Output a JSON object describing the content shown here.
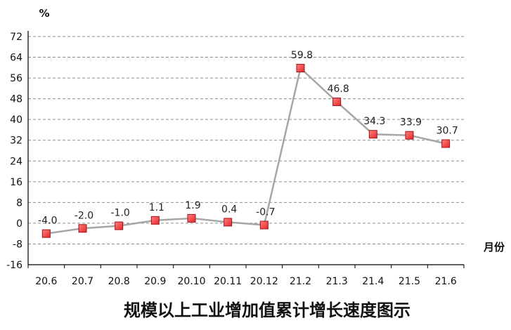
{
  "chart_data": {
    "type": "line",
    "title": "规模以上工业增加值累计增长速度图示",
    "ylabel": "%",
    "xlabel": "月份",
    "categories": [
      "20.6",
      "20.7",
      "20.8",
      "20.9",
      "20.10",
      "20.11",
      "20.12",
      "21.2",
      "21.3",
      "21.4",
      "21.5",
      "21.6"
    ],
    "values": [
      -4.0,
      -2.0,
      -1.0,
      1.1,
      1.9,
      0.4,
      -0.7,
      59.8,
      46.8,
      34.3,
      33.9,
      30.7
    ],
    "data_labels": [
      "-4.0",
      "-2.0",
      "-1.0",
      "1.1",
      "1.9",
      "0.4",
      "-0.7",
      "59.8",
      "46.8",
      "34.3",
      "33.9",
      "30.7"
    ],
    "ylim": [
      -16,
      72
    ],
    "yticks": [
      -16,
      -8,
      0,
      8,
      16,
      24,
      32,
      40,
      48,
      56,
      64,
      72
    ],
    "ytick_labels": [
      "-16",
      "-8",
      "0",
      "8",
      "16",
      "24",
      "32",
      "40",
      "48",
      "56",
      "64",
      "72"
    ],
    "grid": true,
    "legend": "none",
    "colors": {
      "line": "#a6a6a6",
      "marker_fill": "#e8262a",
      "marker_highlight": "#ff8080",
      "marker_edge": "#9e1416",
      "grid": "#8c8c8c",
      "axis": "#000000"
    }
  }
}
